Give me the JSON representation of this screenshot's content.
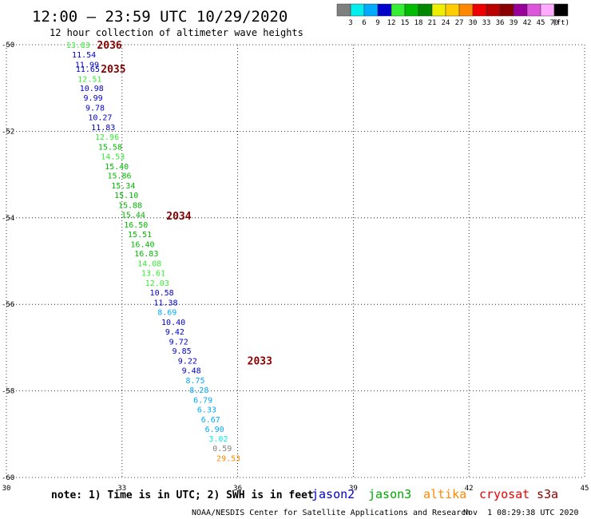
{
  "header": {
    "title": "12:00 — 23:59 UTC 10/29/2020",
    "subtitle": "12 hour collection of altimeter wave heights"
  },
  "legend": {
    "unit": "(ft)",
    "bins": [
      {
        "label": "3",
        "color": "#7f7f7f"
      },
      {
        "label": "6",
        "color": "#00eeee"
      },
      {
        "label": "9",
        "color": "#00aaff"
      },
      {
        "label": "12",
        "color": "#0000cc"
      },
      {
        "label": "15",
        "color": "#33ee33"
      },
      {
        "label": "18",
        "color": "#00bb00"
      },
      {
        "label": "21",
        "color": "#008800"
      },
      {
        "label": "24",
        "color": "#eeee00"
      },
      {
        "label": "27",
        "color": "#ffcc00"
      },
      {
        "label": "30",
        "color": "#ff8800"
      },
      {
        "label": "33",
        "color": "#ee0000"
      },
      {
        "label": "36",
        "color": "#bb0000"
      },
      {
        "label": "39",
        "color": "#880000"
      },
      {
        "label": "42",
        "color": "#990099"
      },
      {
        "label": "45",
        "color": "#dd55dd"
      },
      {
        "label": "70",
        "color": "#ffaaff"
      },
      {
        "label": "",
        "color": "#000000"
      }
    ]
  },
  "map": {
    "lon_range": [
      30,
      45
    ],
    "lat_range": [
      -60,
      -50
    ],
    "lon_ticks": [
      "30",
      "33",
      "36",
      "39",
      "42",
      "45"
    ],
    "lat_ticks": [
      "-50",
      "-52",
      "-54",
      "-56",
      "-58",
      "-60"
    ]
  },
  "chart_data": {
    "type": "scatter",
    "x_unit": "longitude (deg)",
    "y_unit": "latitude (deg)",
    "points": [
      {
        "lon": 31.55,
        "lat": -50.0,
        "label": "13.83",
        "color": "#33ee33"
      },
      {
        "lon": 31.7,
        "lat": -50.22,
        "label": "11.54",
        "color": "#0000cc"
      },
      {
        "lon": 31.78,
        "lat": -50.45,
        "label": "11.99",
        "color": "#0000cc"
      },
      {
        "lon": 31.8,
        "lat": -50.55,
        "label": "11.65",
        "color": "#0000cc"
      },
      {
        "lon": 31.85,
        "lat": -50.78,
        "label": "12.51",
        "color": "#33ee33"
      },
      {
        "lon": 31.9,
        "lat": -51.0,
        "label": "10.98",
        "color": "#0000cc"
      },
      {
        "lon": 32.0,
        "lat": -51.22,
        "label": "9.99",
        "color": "#0000cc"
      },
      {
        "lon": 32.05,
        "lat": -51.45,
        "label": "9.78",
        "color": "#0000cc"
      },
      {
        "lon": 32.12,
        "lat": -51.67,
        "label": "10.27",
        "color": "#0000cc"
      },
      {
        "lon": 32.2,
        "lat": -51.9,
        "label": "11.83",
        "color": "#0000cc"
      },
      {
        "lon": 32.3,
        "lat": -52.12,
        "label": "12.96",
        "color": "#33ee33"
      },
      {
        "lon": 32.38,
        "lat": -52.35,
        "label": "15.58",
        "color": "#00bb00"
      },
      {
        "lon": 32.45,
        "lat": -52.57,
        "label": "14.53",
        "color": "#33ee33"
      },
      {
        "lon": 32.55,
        "lat": -52.8,
        "label": "15.40",
        "color": "#00bb00"
      },
      {
        "lon": 32.62,
        "lat": -53.02,
        "label": "15.86",
        "color": "#00bb00"
      },
      {
        "lon": 32.72,
        "lat": -53.25,
        "label": "15.34",
        "color": "#00bb00"
      },
      {
        "lon": 32.8,
        "lat": -53.47,
        "label": "15.10",
        "color": "#00bb00"
      },
      {
        "lon": 32.9,
        "lat": -53.7,
        "label": "15.88",
        "color": "#00bb00"
      },
      {
        "lon": 32.98,
        "lat": -53.92,
        "label": "15.44",
        "color": "#00bb00"
      },
      {
        "lon": 33.05,
        "lat": -54.15,
        "label": "16.50",
        "color": "#00bb00"
      },
      {
        "lon": 33.15,
        "lat": -54.37,
        "label": "15.51",
        "color": "#00bb00"
      },
      {
        "lon": 33.22,
        "lat": -54.6,
        "label": "16.40",
        "color": "#00bb00"
      },
      {
        "lon": 33.32,
        "lat": -54.82,
        "label": "16.83",
        "color": "#00bb00"
      },
      {
        "lon": 33.4,
        "lat": -55.05,
        "label": "14.08",
        "color": "#33ee33"
      },
      {
        "lon": 33.5,
        "lat": -55.27,
        "label": "13.61",
        "color": "#33ee33"
      },
      {
        "lon": 33.6,
        "lat": -55.5,
        "label": "12.03",
        "color": "#33ee33"
      },
      {
        "lon": 33.72,
        "lat": -55.72,
        "label": "10.58",
        "color": "#0000cc"
      },
      {
        "lon": 33.82,
        "lat": -55.95,
        "label": "11.38",
        "color": "#0000cc"
      },
      {
        "lon": 33.92,
        "lat": -56.17,
        "label": "8.69",
        "color": "#00aaff"
      },
      {
        "lon": 34.02,
        "lat": -56.4,
        "label": "10.40",
        "color": "#0000cc"
      },
      {
        "lon": 34.12,
        "lat": -56.62,
        "label": "9.42",
        "color": "#0000cc"
      },
      {
        "lon": 34.22,
        "lat": -56.85,
        "label": "9.72",
        "color": "#0000cc"
      },
      {
        "lon": 34.3,
        "lat": -57.07,
        "label": "9.85",
        "color": "#0000cc"
      },
      {
        "lon": 34.45,
        "lat": -57.3,
        "label": "9.22",
        "color": "#0000cc"
      },
      {
        "lon": 34.55,
        "lat": -57.52,
        "label": "9.48",
        "color": "#0000cc"
      },
      {
        "lon": 34.65,
        "lat": -57.75,
        "label": "8.75",
        "color": "#00aaff"
      },
      {
        "lon": 34.75,
        "lat": -57.97,
        "label": "8.28",
        "color": "#00aaff"
      },
      {
        "lon": 34.85,
        "lat": -58.2,
        "label": "6.79",
        "color": "#00aaff"
      },
      {
        "lon": 34.95,
        "lat": -58.42,
        "label": "6.33",
        "color": "#00aaff"
      },
      {
        "lon": 35.05,
        "lat": -58.65,
        "label": "6.67",
        "color": "#00aaff"
      },
      {
        "lon": 35.15,
        "lat": -58.87,
        "label": "6.90",
        "color": "#00aaff"
      },
      {
        "lon": 35.25,
        "lat": -59.1,
        "label": "3.02",
        "color": "#00eeee"
      },
      {
        "lon": 35.35,
        "lat": -59.32,
        "label": "0.59",
        "color": "#7f7f7f"
      },
      {
        "lon": 35.45,
        "lat": -59.55,
        "label": "29.53",
        "color": "#ff8800"
      }
    ],
    "pass_labels": [
      {
        "lon": 32.35,
        "lat": -50.0,
        "label": "2036",
        "color": "#880000"
      },
      {
        "lon": 32.45,
        "lat": -50.55,
        "label": "2035",
        "color": "#880000"
      },
      {
        "lon": 34.15,
        "lat": -53.95,
        "label": "2034",
        "color": "#880000"
      },
      {
        "lon": 36.25,
        "lat": -57.3,
        "label": "2033",
        "color": "#880000"
      }
    ]
  },
  "footer": {
    "note": "note: 1) Time is in UTC; 2) SWH is in feet",
    "satellites": [
      {
        "name": "jason2",
        "color": "#0000cc"
      },
      {
        "name": "jason3",
        "color": "#00aa00"
      },
      {
        "name": "altika",
        "color": "#ff8800"
      },
      {
        "name": "cryosat",
        "color": "#ee0000"
      },
      {
        "name": "s3a",
        "color": "#880000"
      }
    ],
    "credit": "NOAA/NESDIS Center for Satellite Applications and Research",
    "timestamp": "Nov  1 08:29:38 UTC 2020"
  }
}
